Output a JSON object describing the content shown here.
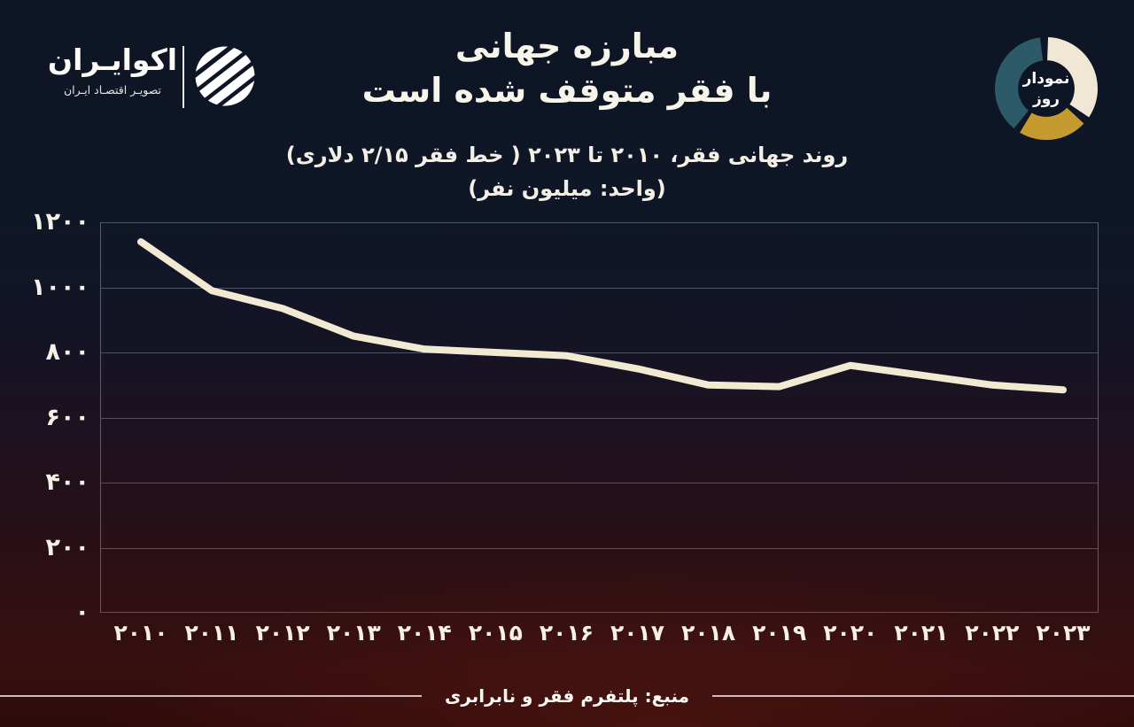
{
  "header": {
    "logo": {
      "name": "اکوایـران",
      "tagline": "تصویـر اقتصـاد ایـران"
    },
    "badge": {
      "line1": "نمودار",
      "line2": "روز"
    },
    "title_line1": "مبارزه جهانی",
    "title_line2": "با فقر متوقف شده است",
    "subtitle": "روند جهانی فقر، ۲۰۱۰ تا ۲۰۲۳ ( خط فقر ۲/۱۵ دلاری)",
    "unit": "(واحد: میلیون نفر)"
  },
  "chart_data": {
    "type": "line",
    "title": "روند جهانی فقر، ۲۰۱۰ تا ۲۰۲۳ ( خط فقر ۲/۱۵ دلاری)",
    "unit_label": "(واحد: میلیون نفر)",
    "categories": [
      "۲۰۱۰",
      "۲۰۱۱",
      "۲۰۱۲",
      "۲۰۱۳",
      "۲۰۱۴",
      "۲۰۱۵",
      "۲۰۱۶",
      "۲۰۱۷",
      "۲۰۱۸",
      "۲۰۱۹",
      "۲۰۲۰",
      "۲۰۲۱",
      "۲۰۲۲",
      "۲۰۲۳"
    ],
    "categories_en": [
      2010,
      2011,
      2012,
      2013,
      2014,
      2015,
      2016,
      2017,
      2018,
      2019,
      2020,
      2021,
      2022,
      2023
    ],
    "series": [
      {
        "name": "روند جهانی فقر (میلیون نفر)",
        "values": [
          1140,
          990,
          935,
          850,
          810,
          800,
          790,
          750,
          700,
          695,
          760,
          730,
          700,
          685
        ]
      }
    ],
    "ylim": [
      0,
      1200
    ],
    "yticks": [
      1200,
      1000,
      800,
      600,
      400,
      200,
      0
    ],
    "ytick_labels": [
      "۱۲۰۰",
      "۱۰۰۰",
      "۸۰۰",
      "۶۰۰",
      "۴۰۰",
      "۲۰۰",
      "۰"
    ],
    "xlabel": "",
    "ylabel": "",
    "grid": "horizontal",
    "legend": "none",
    "line_color": "#f2e9d3"
  },
  "footer": {
    "source": "منبع: پلتفرم فقر و نابرابری"
  },
  "icons": {
    "logo_mark": "ecoiran-logo-icon",
    "badge": "donut-chart-icon"
  },
  "colors": {
    "background_top": "#0e1625",
    "background_bottom": "#2e0b0b",
    "line": "#f2e9d3",
    "grid": "#9baac3",
    "text": "#f7f4ea",
    "donut_cream": "#f0e8d5",
    "donut_gold": "#c59a2f",
    "donut_teal": "#2c5a68",
    "logo_white": "#ffffff"
  }
}
